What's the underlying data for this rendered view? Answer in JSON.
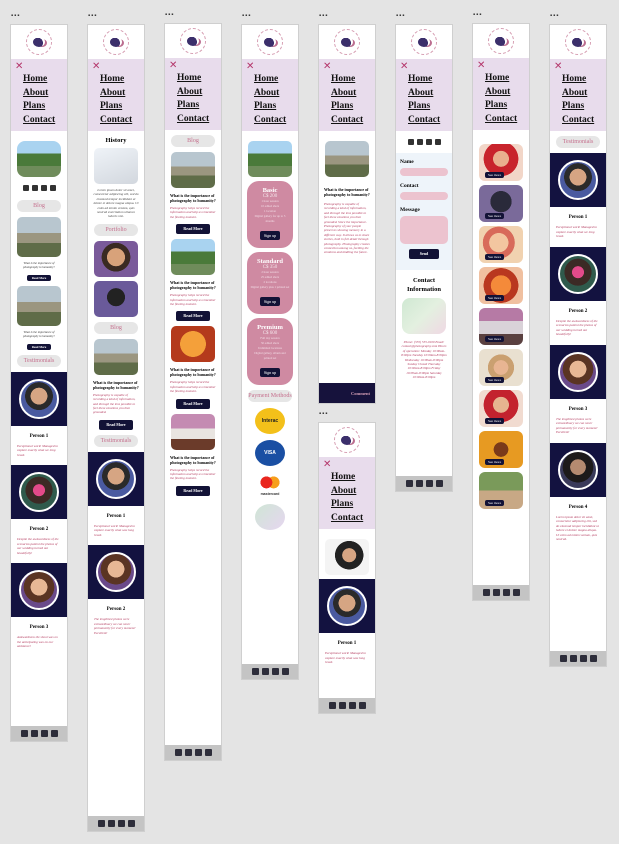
{
  "frame_labels": [
    "▪▪▪",
    "▪▪▪",
    "▪▪▪",
    "▪▪▪",
    "▪▪▪",
    "▪▪▪",
    "▪▪▪",
    "▪▪▪",
    "▪▪▪"
  ],
  "nav": {
    "close": "✕",
    "items": [
      "Home",
      "About",
      "Plans",
      "Contact"
    ]
  },
  "home": {
    "blog_pill": "Blog",
    "testimonials_pill": "Testimonials",
    "blog_post_caption": "What is the importance of photography to humanity?",
    "read_more": "Read More",
    "persons": [
      "Person 1",
      "Person 2",
      "Person 3"
    ],
    "quotes": [
      "Exceptional work! Managed to capture exactly what we long loved.",
      "Despite the awkwardness of the scenarios patient the photos of our wedding turned out beautifully!",
      "Awkwardness the shoot was on the anticipating was on our ambiance!"
    ]
  },
  "about": {
    "history_title": "History",
    "history_text": "Lorem ipsum dolor sit amet, consectetur adipiscing elit, sed do eiusmod tempor incididunt ut labore et dolore magna aliqua. Ut enim ad minim veniam, quis nostrud exercitation ullamco laboris nisi.",
    "portfolio_pill": "Portfolio",
    "blog_pill": "Blog",
    "blog_title": "What is the importance of photography to humanity?",
    "blog_text": "Photography is capable of recording a kind of information, and through the lens possible to feel these emotions you then grounded.",
    "read_more": "Read More",
    "testimonials_pill": "Testimonials",
    "persons": [
      "Person 1",
      "Person 2"
    ],
    "quotes": [
      "Exceptional work! Managed to capture exactly what was long loved.",
      "The lengthiest photos were extraordinary we can never permanently for every moment! Excellent!"
    ]
  },
  "blog": {
    "pill": "Blog",
    "post_title": "What is the importance of photography to humanity?",
    "post_text": "Photography helps record the information and help us remember the fleeting moment.",
    "read_more": "Read More",
    "posts": 4
  },
  "plans": {
    "cards": [
      {
        "title": "Basic",
        "price": "C$ 200",
        "lines": [
          "1 hour session",
          "10 edited shots",
          "1 location",
          "Digital gallery for up to 5 months"
        ],
        "cta": "Sign up"
      },
      {
        "title": "Standard",
        "price": "C$ 350",
        "lines": [
          "2 hour session",
          "25 edited shots",
          "2 locations",
          "Digital gallery plus 1 printed set"
        ],
        "cta": "Sign up"
      },
      {
        "title": "Premium",
        "price": "C$ 600",
        "lines": [
          "Full day session",
          "50 edited shots",
          "Unlimited locations",
          "Digital gallery, album and printed set"
        ],
        "cta": "Sign up"
      }
    ],
    "payment_pill": "Payment Methods",
    "payment_logos": [
      "Interac",
      "VISA",
      "mastercard",
      "map"
    ]
  },
  "blogpost": {
    "title": "What is the importance of photography to humanity?",
    "text": "Photography is capable of recording a kind of information, and through the lens possible to feel these emotions you then grounded. Since the importance. Photography of your people preserves showing memory in a different way. It allows us to share stories, both in full detail through photography. Photography creates connection among us, fuelling the emotions and kindling the future.",
    "comment_label": "Comment"
  },
  "contact": {
    "labels": [
      "Name",
      "Contact",
      "Message"
    ],
    "send": "Send",
    "info_title": "Contact Information",
    "info_text": "Phone: (555) 555-0100 Email: contact@photography.com Hours of operation: Monday 10:00am-8:00pm Tuesday 10:00am-8:00pm Wednesday 10:00am-8:00pm Sunday Closed Thursday 10:00am-8:00pm Friday 10:00am-8:00pm Saturday 10:00am-8:00pm"
  },
  "gallery": {
    "see_more": "See more",
    "items": 9
  },
  "testimonials": {
    "pill": "Testimonials",
    "persons": [
      "Person 1",
      "Person 2",
      "Person 3",
      "Person 4"
    ],
    "quotes": [
      "Exceptional work! Managed to capture exactly what we long loved.",
      "Despite the awkwardness of the scenarios patient the photos of our wedding turned out beautifully!",
      "The lengthiest photos were extraordinary we can never permanently for every moment! Excellent!",
      "Lorem ipsum dolor sit amet, consectetur adipiscing elit, sed do eiusmod tempor incididunt ut labore et dolore magna aliqua. Ut enim ad minim veniam, quis nostrud."
    ]
  }
}
